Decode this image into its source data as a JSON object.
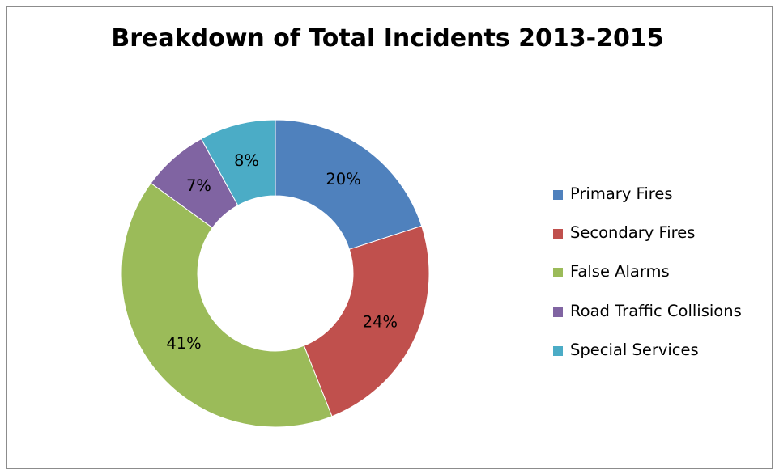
{
  "chart_data": {
    "type": "pie",
    "variant": "doughnut",
    "title": "Breakdown of Total Incidents 2013-2015",
    "slices": [
      {
        "label": "Primary Fires",
        "value": 20,
        "display": "20%",
        "color": "#4f81bd"
      },
      {
        "label": "Secondary Fires",
        "value": 24,
        "display": "24%",
        "color": "#c0504d"
      },
      {
        "label": "False Alarms",
        "value": 41,
        "display": "41%",
        "color": "#9bbb59"
      },
      {
        "label": "Road Traffic Collisions",
        "value": 7,
        "display": "7%",
        "color": "#8064a2"
      },
      {
        "label": "Special Services",
        "value": 8,
        "display": "8%",
        "color": "#4bacc6"
      }
    ],
    "legend_position": "right"
  }
}
